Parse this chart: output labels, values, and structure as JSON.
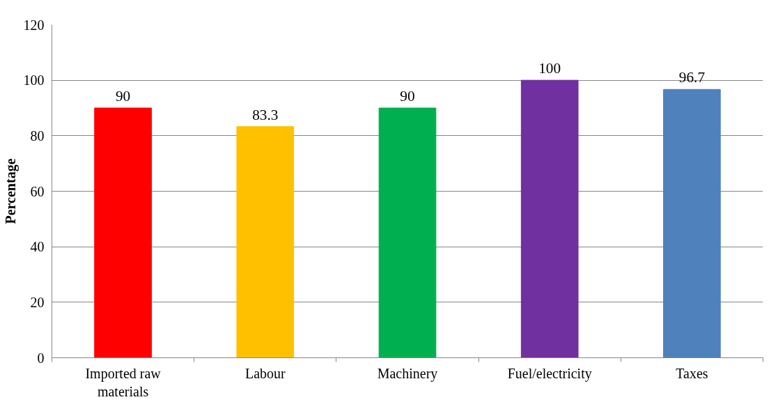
{
  "chart_data": {
    "type": "bar",
    "ylabel": "Percentage",
    "categories": [
      "Imported raw materials",
      "Labour",
      "Machinery",
      "Fuel/electricity",
      "Taxes"
    ],
    "values": [
      90,
      83.3,
      90,
      100,
      96.7
    ],
    "colors": [
      "#ff0000",
      "#ffc000",
      "#00b050",
      "#7030a0",
      "#4f81bd"
    ],
    "ylim": [
      0,
      120
    ],
    "yticks": [
      0,
      20,
      40,
      60,
      80,
      100,
      120
    ],
    "grid": "y",
    "data_labels": true
  }
}
